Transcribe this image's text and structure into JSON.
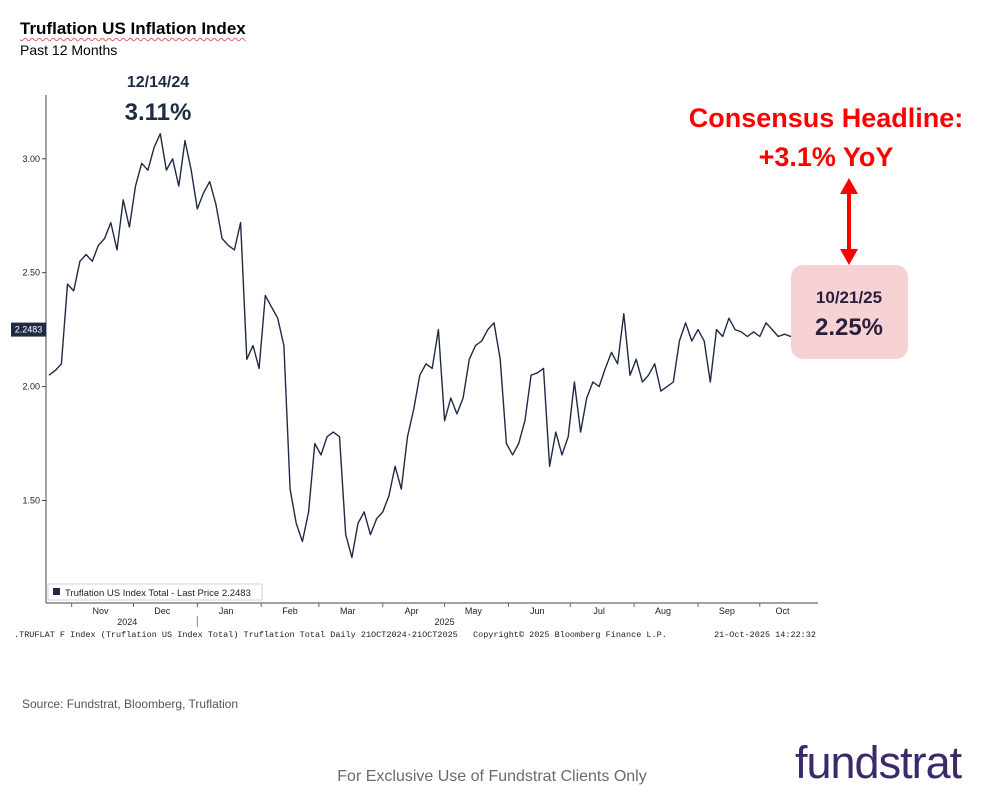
{
  "header": {
    "title": "Truflation US Inflation Index",
    "subtitle": "Past 12 Months"
  },
  "annotations": {
    "peak_date": "12/14/24",
    "peak_value": "3.11%",
    "consensus_line1": "Consensus Headline:",
    "consensus_line2": "+3.1% YoY",
    "latest_date": "10/21/25",
    "latest_value": "2.25%",
    "last_price_tag": "2.2483",
    "accent_red": "#ff0000",
    "navy": "#1f2a44",
    "callout_bg": "#f7d2d5"
  },
  "bloomberg": {
    "ticker_line": ".TRUFLAT F Index (Truflation US Index Total) Truflation Total Daily 21OCT2024-21OCT2025",
    "copyright": "Copyright© 2025 Bloomberg Finance L.P.",
    "timestamp": "21-Oct-2025 14:22:32",
    "legend": "Truflation US Index Total - Last Price 2.2483"
  },
  "source": "Source: Fundstrat, Bloomberg, Truflation",
  "footer": "For Exclusive Use of Fundstrat Clients Only",
  "logo": "fundstrat",
  "chart_data": {
    "type": "line",
    "title": "Truflation US Inflation Index",
    "subtitle": "Past 12 Months",
    "y_ticks": [
      "3.00",
      "2.50",
      "2.00",
      "1.50"
    ],
    "ylim": [
      1.05,
      3.28
    ],
    "x_ticks": [
      "Nov",
      "Dec",
      "Jan",
      "Feb",
      "Mar",
      "Apr",
      "May",
      "Jun",
      "Jul",
      "Aug",
      "Sep",
      "Oct"
    ],
    "x_year_labels": [
      "2024",
      "2025"
    ],
    "grid": false,
    "legend_position": "bottom-left",
    "series": [
      {
        "name": "Truflation US Index Total",
        "color": "#1f2a44",
        "x": [
          "2024-10-21",
          "2024-10-24",
          "2024-10-27",
          "2024-10-30",
          "2024-11-02",
          "2024-11-05",
          "2024-11-08",
          "2024-11-11",
          "2024-11-14",
          "2024-11-17",
          "2024-11-20",
          "2024-11-23",
          "2024-11-26",
          "2024-11-29",
          "2024-12-02",
          "2024-12-05",
          "2024-12-08",
          "2024-12-11",
          "2024-12-14",
          "2024-12-17",
          "2024-12-20",
          "2024-12-23",
          "2024-12-26",
          "2024-12-29",
          "2025-01-01",
          "2025-01-04",
          "2025-01-07",
          "2025-01-10",
          "2025-01-13",
          "2025-01-16",
          "2025-01-19",
          "2025-01-22",
          "2025-01-25",
          "2025-01-28",
          "2025-01-31",
          "2025-02-03",
          "2025-02-06",
          "2025-02-09",
          "2025-02-12",
          "2025-02-15",
          "2025-02-18",
          "2025-02-21",
          "2025-02-24",
          "2025-02-27",
          "2025-03-02",
          "2025-03-05",
          "2025-03-08",
          "2025-03-11",
          "2025-03-14",
          "2025-03-17",
          "2025-03-20",
          "2025-03-23",
          "2025-03-26",
          "2025-03-29",
          "2025-04-01",
          "2025-04-04",
          "2025-04-07",
          "2025-04-10",
          "2025-04-13",
          "2025-04-16",
          "2025-04-19",
          "2025-04-22",
          "2025-04-25",
          "2025-04-28",
          "2025-05-01",
          "2025-05-04",
          "2025-05-07",
          "2025-05-10",
          "2025-05-13",
          "2025-05-16",
          "2025-05-19",
          "2025-05-22",
          "2025-05-25",
          "2025-05-28",
          "2025-05-31",
          "2025-06-03",
          "2025-06-06",
          "2025-06-09",
          "2025-06-12",
          "2025-06-15",
          "2025-06-18",
          "2025-06-21",
          "2025-06-24",
          "2025-06-27",
          "2025-06-30",
          "2025-07-03",
          "2025-07-06",
          "2025-07-09",
          "2025-07-12",
          "2025-07-15",
          "2025-07-18",
          "2025-07-21",
          "2025-07-24",
          "2025-07-27",
          "2025-07-30",
          "2025-08-02",
          "2025-08-05",
          "2025-08-08",
          "2025-08-11",
          "2025-08-14",
          "2025-08-17",
          "2025-08-20",
          "2025-08-23",
          "2025-08-26",
          "2025-08-29",
          "2025-09-01",
          "2025-09-04",
          "2025-09-07",
          "2025-09-10",
          "2025-09-13",
          "2025-09-16",
          "2025-09-19",
          "2025-09-22",
          "2025-09-25",
          "2025-09-28",
          "2025-10-01",
          "2025-10-04",
          "2025-10-07",
          "2025-10-10",
          "2025-10-13",
          "2025-10-16",
          "2025-10-21"
        ],
        "y": [
          2.05,
          2.07,
          2.1,
          2.45,
          2.42,
          2.55,
          2.58,
          2.55,
          2.62,
          2.65,
          2.72,
          2.6,
          2.82,
          2.7,
          2.88,
          2.98,
          2.95,
          3.05,
          3.11,
          2.95,
          3.0,
          2.88,
          3.08,
          2.95,
          2.78,
          2.85,
          2.9,
          2.8,
          2.65,
          2.62,
          2.6,
          2.72,
          2.12,
          2.18,
          2.08,
          2.4,
          2.35,
          2.3,
          2.18,
          1.55,
          1.4,
          1.32,
          1.45,
          1.75,
          1.7,
          1.78,
          1.8,
          1.78,
          1.35,
          1.25,
          1.4,
          1.45,
          1.35,
          1.42,
          1.45,
          1.52,
          1.65,
          1.55,
          1.78,
          1.9,
          2.05,
          2.1,
          2.08,
          2.25,
          1.85,
          1.95,
          1.88,
          1.95,
          2.12,
          2.18,
          2.2,
          2.25,
          2.28,
          2.12,
          1.75,
          1.7,
          1.75,
          1.85,
          2.05,
          2.06,
          2.08,
          1.65,
          1.8,
          1.7,
          1.78,
          2.02,
          1.8,
          1.95,
          2.02,
          2.0,
          2.08,
          2.15,
          2.1,
          2.32,
          2.05,
          2.12,
          2.02,
          2.05,
          2.1,
          1.98,
          2.0,
          2.02,
          2.2,
          2.28,
          2.2,
          2.25,
          2.2,
          2.02,
          2.25,
          2.22,
          2.3,
          2.25,
          2.24,
          2.22,
          2.24,
          2.22,
          2.28,
          2.25,
          2.22,
          2.23,
          2.22,
          2.25
        ]
      }
    ]
  }
}
